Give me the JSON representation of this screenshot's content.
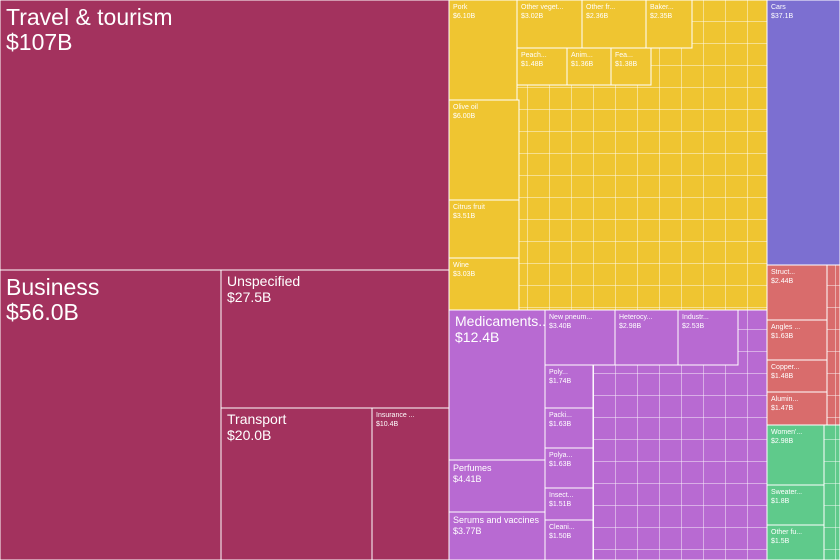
{
  "chart_data": {
    "type": "treemap",
    "series": [
      {
        "color": "#a3325e",
        "names": [
          "Travel & tourism",
          "Business",
          "Unspecified",
          "Transport",
          "Insurance ..."
        ],
        "values": [
          107,
          56.0,
          27.5,
          20.0,
          10.4
        ],
        "value_labels": [
          "$107B",
          "$56.0B",
          "$27.5B",
          "$20.0B",
          "$10.4B"
        ]
      },
      {
        "color": "#efc531",
        "names": [
          "Pork",
          "Other veget...",
          "Other fr...",
          "Baker...",
          "Peach...",
          "Anim...",
          "Fea...",
          "Olive oil",
          "Citrus fruit",
          "Wine"
        ],
        "values": [
          6.1,
          3.02,
          2.36,
          2.35,
          1.48,
          1.36,
          1.38,
          6.0,
          3.51,
          3.03
        ],
        "value_labels": [
          "$6.10B",
          "$3.02B",
          "$2.36B",
          "$2.35B",
          "$1.48B",
          "$1.36B",
          "$1.38B",
          "$6.00B",
          "$3.51B",
          "$3.03B"
        ]
      },
      {
        "color": "#b86ad2",
        "names": [
          "Medicaments...",
          "Perfumes",
          "Serums and vaccines",
          "New pneum...",
          "Heterocy...",
          "Industr...",
          "Poly...",
          "Packi...",
          "Polya...",
          "Insect...",
          "Cleani..."
        ],
        "values": [
          12.4,
          4.41,
          3.77,
          3.4,
          2.98,
          2.53,
          1.74,
          1.63,
          1.63,
          1.51,
          1.5
        ],
        "value_labels": [
          "$12.4B",
          "$4.41B",
          "$3.77B",
          "$3.40B",
          "$2.98B",
          "$2.53B",
          "$1.74B",
          "$1.63B",
          "$1.63B",
          "$1.51B",
          "$1.50B"
        ]
      },
      {
        "color": "#7c6fd1",
        "names": [
          "Cars"
        ],
        "values": [
          37.1
        ],
        "value_labels": [
          "$37.1B"
        ]
      },
      {
        "color": "#d96c6c",
        "names": [
          "Struct...",
          "Angles ...",
          "Copper...",
          "Alumin..."
        ],
        "values": [
          2.44,
          1.63,
          1.48,
          1.47
        ],
        "value_labels": [
          "$2.44B",
          "$1.63B",
          "$1.48B",
          "$1.47B"
        ]
      },
      {
        "color": "#5fca8b",
        "names": [
          "Women'...",
          "Sweater...",
          "Other fu..."
        ],
        "values": [
          2.98,
          1.8,
          1.5
        ],
        "value_labels": [
          "$2.98B",
          "$1.8B",
          "$1.5B"
        ]
      }
    ]
  }
}
